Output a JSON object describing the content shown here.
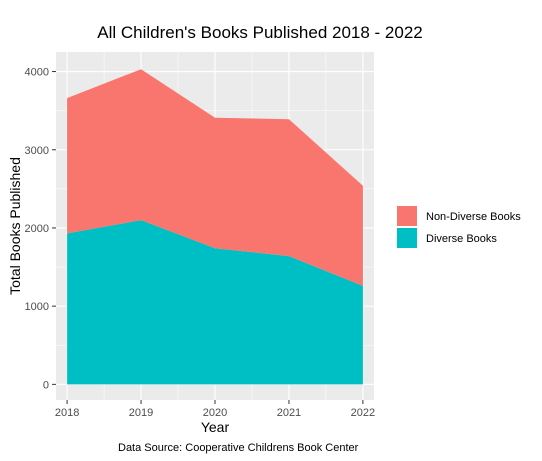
{
  "chart_data": {
    "type": "area",
    "stacked": true,
    "title": "All Children's Books Published 2018 - 2022",
    "xlabel": "Year",
    "ylabel": "Total Books Published",
    "caption": "Data Source: Cooperative Childrens Book Center",
    "x": [
      2018,
      2019,
      2020,
      2021,
      2022
    ],
    "x_tick_labels": [
      "2018",
      "2019",
      "2020",
      "2021",
      "2022"
    ],
    "y_ticks": [
      0,
      1000,
      2000,
      3000,
      4000
    ],
    "y_tick_labels": [
      "0",
      "1000",
      "2000",
      "3000",
      "4000"
    ],
    "xlim": [
      2017.85,
      2022.15
    ],
    "ylim": [
      -200,
      4250
    ],
    "grid": true,
    "legend_position": "right",
    "series": [
      {
        "name": "Non-Diverse Books",
        "color": "#F8766D",
        "values": [
          1730,
          1930,
          1670,
          1750,
          1280
        ]
      },
      {
        "name": "Diverse Books",
        "color": "#00BFC4",
        "values": [
          1930,
          2100,
          1740,
          1640,
          1260
        ]
      }
    ]
  }
}
